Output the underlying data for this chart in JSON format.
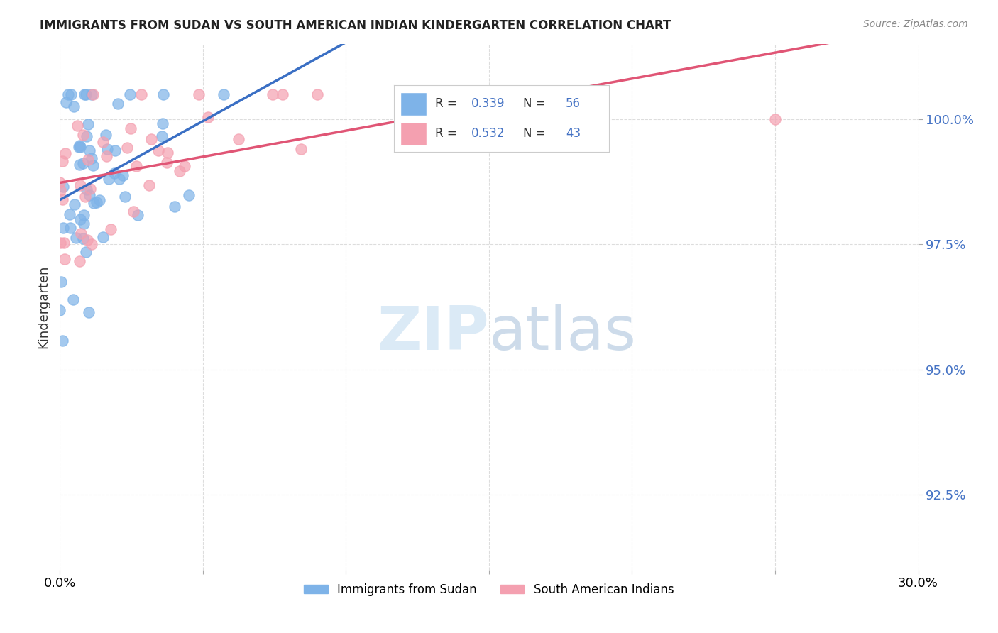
{
  "title": "IMMIGRANTS FROM SUDAN VS SOUTH AMERICAN INDIAN KINDERGARTEN CORRELATION CHART",
  "source": "Source: ZipAtlas.com",
  "ylabel": "Kindergarten",
  "xlim": [
    0.0,
    30.0
  ],
  "ylim": [
    91.0,
    101.5
  ],
  "yticks": [
    92.5,
    95.0,
    97.5,
    100.0
  ],
  "ytick_labels": [
    "92.5%",
    "95.0%",
    "97.5%",
    "100.0%"
  ],
  "grid_color": "#dddddd",
  "background_color": "#ffffff",
  "series1_label": "Immigrants from Sudan",
  "series2_label": "South American Indians",
  "series1_color": "#7eb3e8",
  "series2_color": "#f4a0b0",
  "series1_R": 0.339,
  "series1_N": 56,
  "series2_R": 0.532,
  "series2_N": 43,
  "legend_color": "#4472c4",
  "line1_color": "#3a6fc4",
  "line2_color": "#e05575",
  "watermark_zip_color": "#d8e8f5",
  "watermark_atlas_color": "#c8d8e8"
}
